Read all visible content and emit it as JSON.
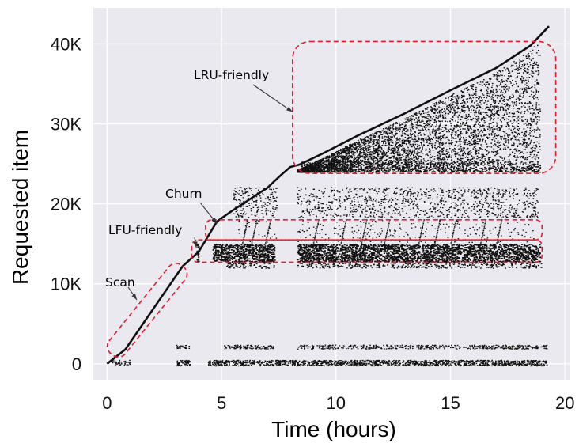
{
  "chart_data": {
    "type": "scatter",
    "title": "",
    "xlabel": "Time (hours)",
    "ylabel": "Requested item",
    "xlim": [
      -0.6,
      20.2
    ],
    "ylim": [
      -2000,
      44500
    ],
    "grid": true,
    "x_ticks": [
      {
        "value": 0,
        "label": "0"
      },
      {
        "value": 5,
        "label": "5"
      },
      {
        "value": 10,
        "label": "10"
      },
      {
        "value": 15,
        "label": "15"
      },
      {
        "value": 20,
        "label": "20"
      }
    ],
    "y_ticks": [
      {
        "value": 0,
        "label": "0"
      },
      {
        "value": 10000,
        "label": "10K"
      },
      {
        "value": 20000,
        "label": "20K"
      },
      {
        "value": 30000,
        "label": "30K"
      },
      {
        "value": 40000,
        "label": "40K"
      }
    ],
    "new_item_frontier": {
      "x": [
        0.0,
        0.8,
        3.3,
        4.0,
        4.8,
        5.5,
        7.0,
        7.6,
        8.0,
        8.4,
        9.5,
        11.0,
        13.0,
        15.0,
        17.0,
        18.5,
        19.3
      ],
      "y": [
        0,
        1800,
        12200,
        14000,
        17800,
        19200,
        22000,
        23600,
        24600,
        24900,
        26400,
        28600,
        31300,
        34200,
        37000,
        39800,
        42200
      ]
    },
    "annotations": [
      {
        "label": "Scan",
        "arrow_x": 1.3,
        "arrow_y": 8000
      },
      {
        "label": "LFU-friendly",
        "arrow_x": 3.9,
        "arrow_y": 14500
      },
      {
        "label": "Churn",
        "arrow_x": 4.8,
        "arrow_y": 17500
      },
      {
        "label": "LRU-friendly",
        "arrow_x": 8.1,
        "arrow_y": 31500
      }
    ]
  }
}
